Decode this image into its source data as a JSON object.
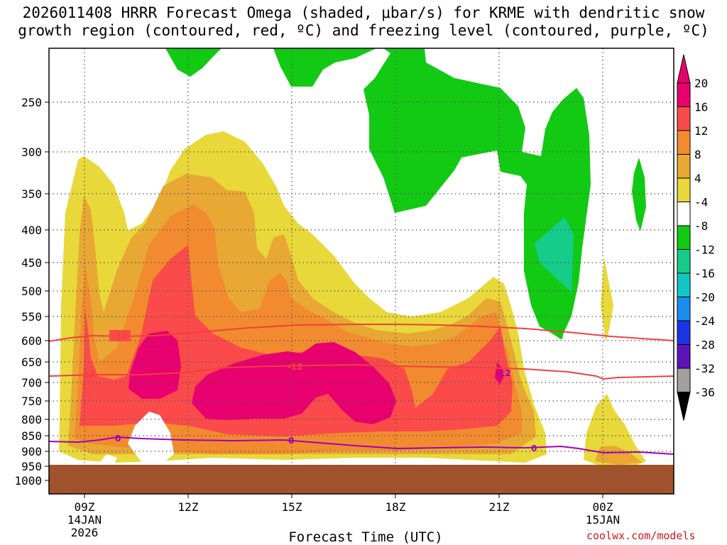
{
  "title": {
    "line1": "2026011408 HRRR Forecast Omega (shaded, μbar/s) for KRME with dendritic snow",
    "line2": "growth region (contoured, red, ºC) and freezing level (contoured, purple, ºC)"
  },
  "watermark": "coolwx.com/models",
  "chart_data": {
    "type": "contour-cross-section",
    "xlabel": "Forecast Time (UTC)",
    "ylabel": "",
    "x_ticks": [
      {
        "hour": 9,
        "label": "09Z",
        "date": "14JAN",
        "year": "2026"
      },
      {
        "hour": 12,
        "label": "12Z"
      },
      {
        "hour": 15,
        "label": "15Z"
      },
      {
        "hour": 18,
        "label": "18Z"
      },
      {
        "hour": 21,
        "label": "21Z"
      },
      {
        "hour": 24,
        "label": "00Z",
        "date": "15JAN"
      }
    ],
    "xlim": [
      8,
      26
    ],
    "y_ticks": [
      250,
      300,
      350,
      400,
      450,
      500,
      550,
      600,
      650,
      700,
      750,
      800,
      850,
      900,
      950,
      1000
    ],
    "ylim": [
      200,
      1000
    ],
    "colorbar": {
      "labels": [
        "20",
        "16",
        "12",
        "8",
        "4",
        "-4",
        "-8",
        "-12",
        "-16",
        "-20",
        "-24",
        "-28",
        "-32",
        "-36"
      ],
      "colors": [
        "#e8006e",
        "#fb4a4a",
        "#f28b2f",
        "#e8a833",
        "#e8d83a",
        "#ffffff",
        "#12c914",
        "#16cc8a",
        "#12c6c6",
        "#1a8ef0",
        "#1c34e6",
        "#5a14b8",
        "#9c00c6",
        "#a0a0a0"
      ],
      "over_color": "#e8006e",
      "under_color": "#000000"
    },
    "contour_labels": {
      "dgz_upper": "-18",
      "dgz_lower": "-12",
      "freezing": "0"
    },
    "ground_color": "#a0522d"
  }
}
